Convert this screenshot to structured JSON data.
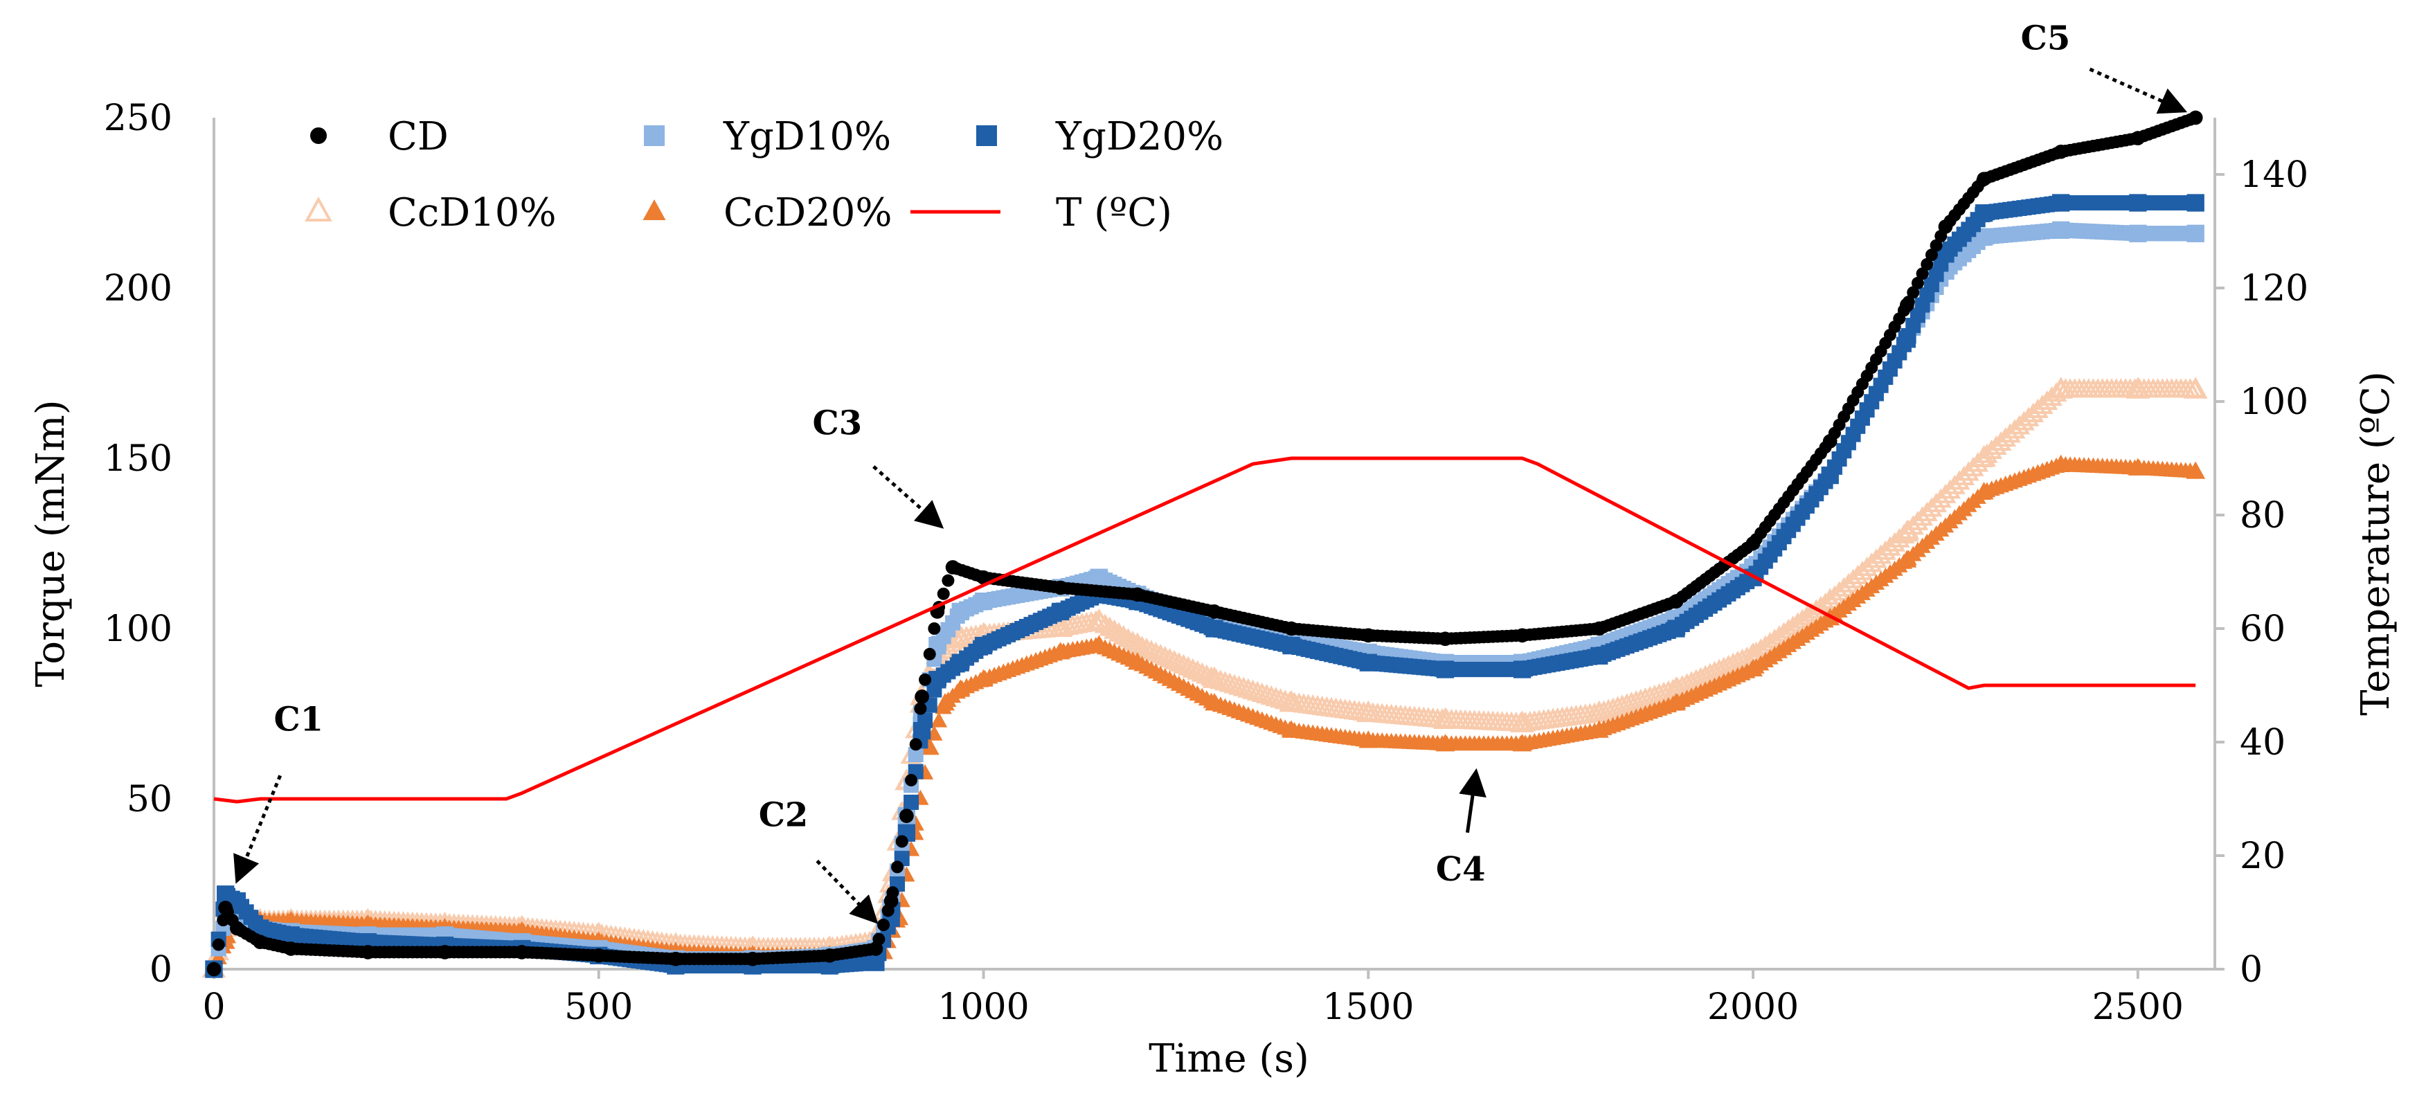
{
  "chart_data": {
    "type": "scatter",
    "xlabel": "Time (s)",
    "ylabel": "Torque (mNm)",
    "y2label": "Temperature (ºC)",
    "xlim": [
      0,
      2600
    ],
    "ylim": [
      0,
      250
    ],
    "y2lim": [
      0,
      150
    ],
    "xticks": [
      "0",
      "500",
      "1000",
      "1500",
      "2000",
      "2500"
    ],
    "yticks": [
      "0",
      "50",
      "100",
      "150",
      "200",
      "250"
    ],
    "y2ticks": [
      "0",
      "20",
      "40",
      "60",
      "80",
      "100",
      "120",
      "140"
    ],
    "grid": false,
    "legend_position": "top-left",
    "series": [
      {
        "name": "CD",
        "marker": "circle",
        "color": "#000000",
        "x": [
          0,
          15,
          30,
          60,
          100,
          200,
          300,
          400,
          500,
          600,
          700,
          800,
          860,
          880,
          900,
          920,
          940,
          960,
          1000,
          1100,
          1200,
          1300,
          1400,
          1500,
          1600,
          1700,
          1800,
          1900,
          2000,
          2100,
          2200,
          2250,
          2300,
          2400,
          2500,
          2575
        ],
        "y": [
          0,
          18,
          12,
          8,
          6,
          5,
          5,
          5,
          4,
          3,
          3,
          4,
          6,
          20,
          45,
          80,
          105,
          118,
          115,
          112,
          110,
          105,
          100,
          98,
          97,
          98,
          100,
          108,
          125,
          155,
          195,
          218,
          232,
          240,
          244,
          250
        ]
      },
      {
        "name": "YgD10%",
        "marker": "square",
        "color": "#8db4e2",
        "x": [
          0,
          15,
          30,
          60,
          100,
          200,
          300,
          400,
          500,
          600,
          700,
          800,
          860,
          880,
          900,
          920,
          940,
          970,
          1000,
          1100,
          1150,
          1200,
          1300,
          1400,
          1500,
          1600,
          1700,
          1800,
          1900,
          2000,
          2100,
          2200,
          2250,
          2300,
          2400,
          2500,
          2575
        ],
        "y": [
          0,
          15,
          14,
          12,
          11,
          10,
          10,
          8,
          6,
          3,
          3,
          4,
          6,
          18,
          45,
          75,
          95,
          105,
          108,
          112,
          115,
          110,
          102,
          97,
          93,
          90,
          90,
          95,
          103,
          118,
          145,
          185,
          205,
          215,
          217,
          216,
          216
        ]
      },
      {
        "name": "YgD20%",
        "marker": "square",
        "color": "#1f5fa8",
        "x": [
          0,
          15,
          30,
          60,
          100,
          200,
          300,
          400,
          500,
          600,
          700,
          800,
          860,
          880,
          900,
          920,
          940,
          970,
          1000,
          1100,
          1150,
          1200,
          1300,
          1400,
          1500,
          1600,
          1700,
          1800,
          1900,
          2000,
          2100,
          2200,
          2250,
          2300,
          2400,
          2500,
          2575
        ],
        "y": [
          0,
          22,
          20,
          12,
          10,
          8,
          7,
          6,
          4,
          1,
          1,
          1,
          2,
          15,
          40,
          70,
          85,
          90,
          95,
          105,
          110,
          108,
          100,
          95,
          90,
          88,
          88,
          92,
          100,
          115,
          145,
          185,
          210,
          222,
          225,
          225,
          225
        ]
      },
      {
        "name": "CcD10%",
        "marker": "triangle-open",
        "color": "#f8cbad",
        "x": [
          0,
          15,
          30,
          60,
          100,
          200,
          300,
          400,
          500,
          600,
          700,
          800,
          860,
          880,
          900,
          920,
          940,
          970,
          1000,
          1100,
          1150,
          1200,
          1300,
          1400,
          1500,
          1600,
          1700,
          1800,
          1900,
          2000,
          2100,
          2200,
          2300,
          2400,
          2500,
          2575
        ],
        "y": [
          0,
          12,
          15,
          14,
          14,
          14,
          13,
          12,
          10,
          7,
          6,
          6,
          8,
          25,
          55,
          80,
          92,
          97,
          98,
          100,
          102,
          95,
          85,
          78,
          75,
          73,
          72,
          75,
          82,
          92,
          108,
          128,
          150,
          170,
          170,
          170
        ]
      },
      {
        "name": "CcD20%",
        "marker": "triangle",
        "color": "#ed7d31",
        "x": [
          0,
          15,
          30,
          60,
          100,
          200,
          300,
          400,
          500,
          600,
          700,
          800,
          870,
          890,
          910,
          930,
          950,
          970,
          1000,
          1100,
          1150,
          1200,
          1300,
          1400,
          1500,
          1600,
          1700,
          1800,
          1900,
          2000,
          2100,
          2200,
          2300,
          2400,
          2500,
          2575
        ],
        "y": [
          0,
          8,
          15,
          14,
          14,
          13,
          12,
          11,
          8,
          5,
          4,
          4,
          5,
          15,
          40,
          65,
          78,
          82,
          85,
          93,
          95,
          90,
          78,
          70,
          67,
          66,
          66,
          70,
          78,
          88,
          103,
          120,
          140,
          148,
          147,
          146
        ]
      }
    ],
    "temperature_series": {
      "name": "T (ºC)",
      "color": "#ff0000",
      "x": [
        0,
        30,
        60,
        380,
        400,
        1350,
        1400,
        1700,
        1720,
        2280,
        2300,
        2575
      ],
      "y": [
        30,
        29.5,
        30,
        30,
        31,
        89,
        90,
        90,
        89,
        49.5,
        50,
        50
      ]
    },
    "annotations": [
      {
        "text": "C1",
        "x": 110,
        "y": 70,
        "arrow_to_x": 30,
        "arrow_to_y": 26
      },
      {
        "text": "C2",
        "x": 740,
        "y": 42,
        "arrow_to_x": 860,
        "arrow_to_y": 14
      },
      {
        "text": "C3",
        "x": 810,
        "y": 157,
        "arrow_to_x": 945,
        "arrow_to_y": 130
      },
      {
        "text": "C4",
        "x": 1620,
        "y": 26,
        "arrow_to_x": 1640,
        "arrow_to_y": 58
      },
      {
        "text": "C5",
        "x": 2380,
        "y": 270,
        "arrow_to_x": 2560,
        "arrow_to_y": 252
      }
    ]
  }
}
